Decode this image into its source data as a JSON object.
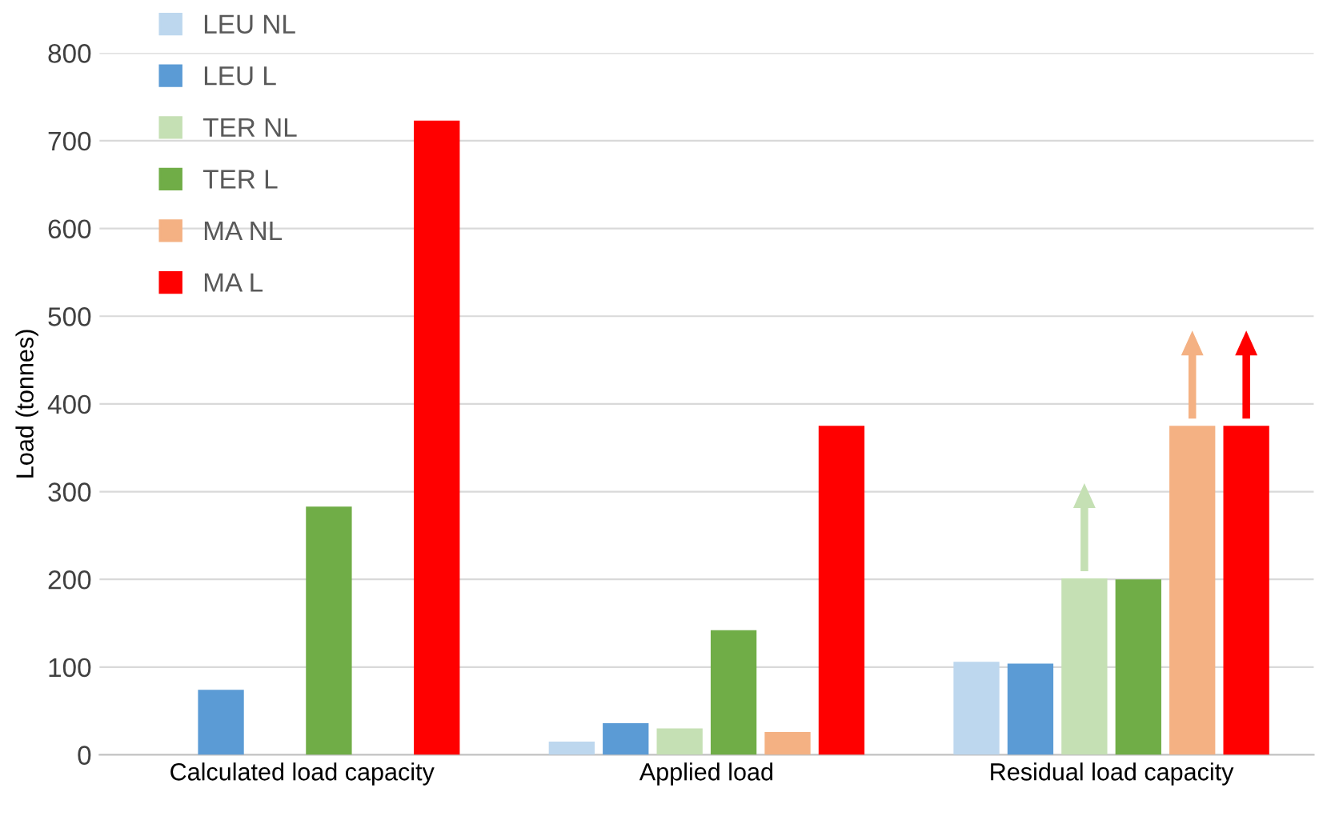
{
  "chart_data": {
    "type": "bar",
    "ylabel": "Load (tonnes)",
    "categories": [
      "Calculated load capacity",
      "Applied load",
      "Residual load capacity"
    ],
    "series": [
      {
        "name": "LEU NL",
        "color": "#bdd7ee",
        "values": [
          null,
          15,
          106
        ]
      },
      {
        "name": "LEU L",
        "color": "#5b9bd5",
        "values": [
          74,
          36,
          104
        ]
      },
      {
        "name": "TER NL",
        "color": "#c5e0b4",
        "values": [
          null,
          30,
          201
        ]
      },
      {
        "name": "TER L",
        "color": "#70ad47",
        "values": [
          283,
          142,
          200
        ]
      },
      {
        "name": "MA NL",
        "color": "#f4b183",
        "values": [
          null,
          26,
          375
        ]
      },
      {
        "name": "MA L",
        "color": "#ff0000",
        "values": [
          723,
          375,
          375
        ]
      }
    ],
    "ylim": [
      0,
      800
    ],
    "yticks": [
      0,
      100,
      200,
      300,
      400,
      500,
      600,
      700,
      800
    ],
    "grid": "y",
    "legend": "top left"
  }
}
